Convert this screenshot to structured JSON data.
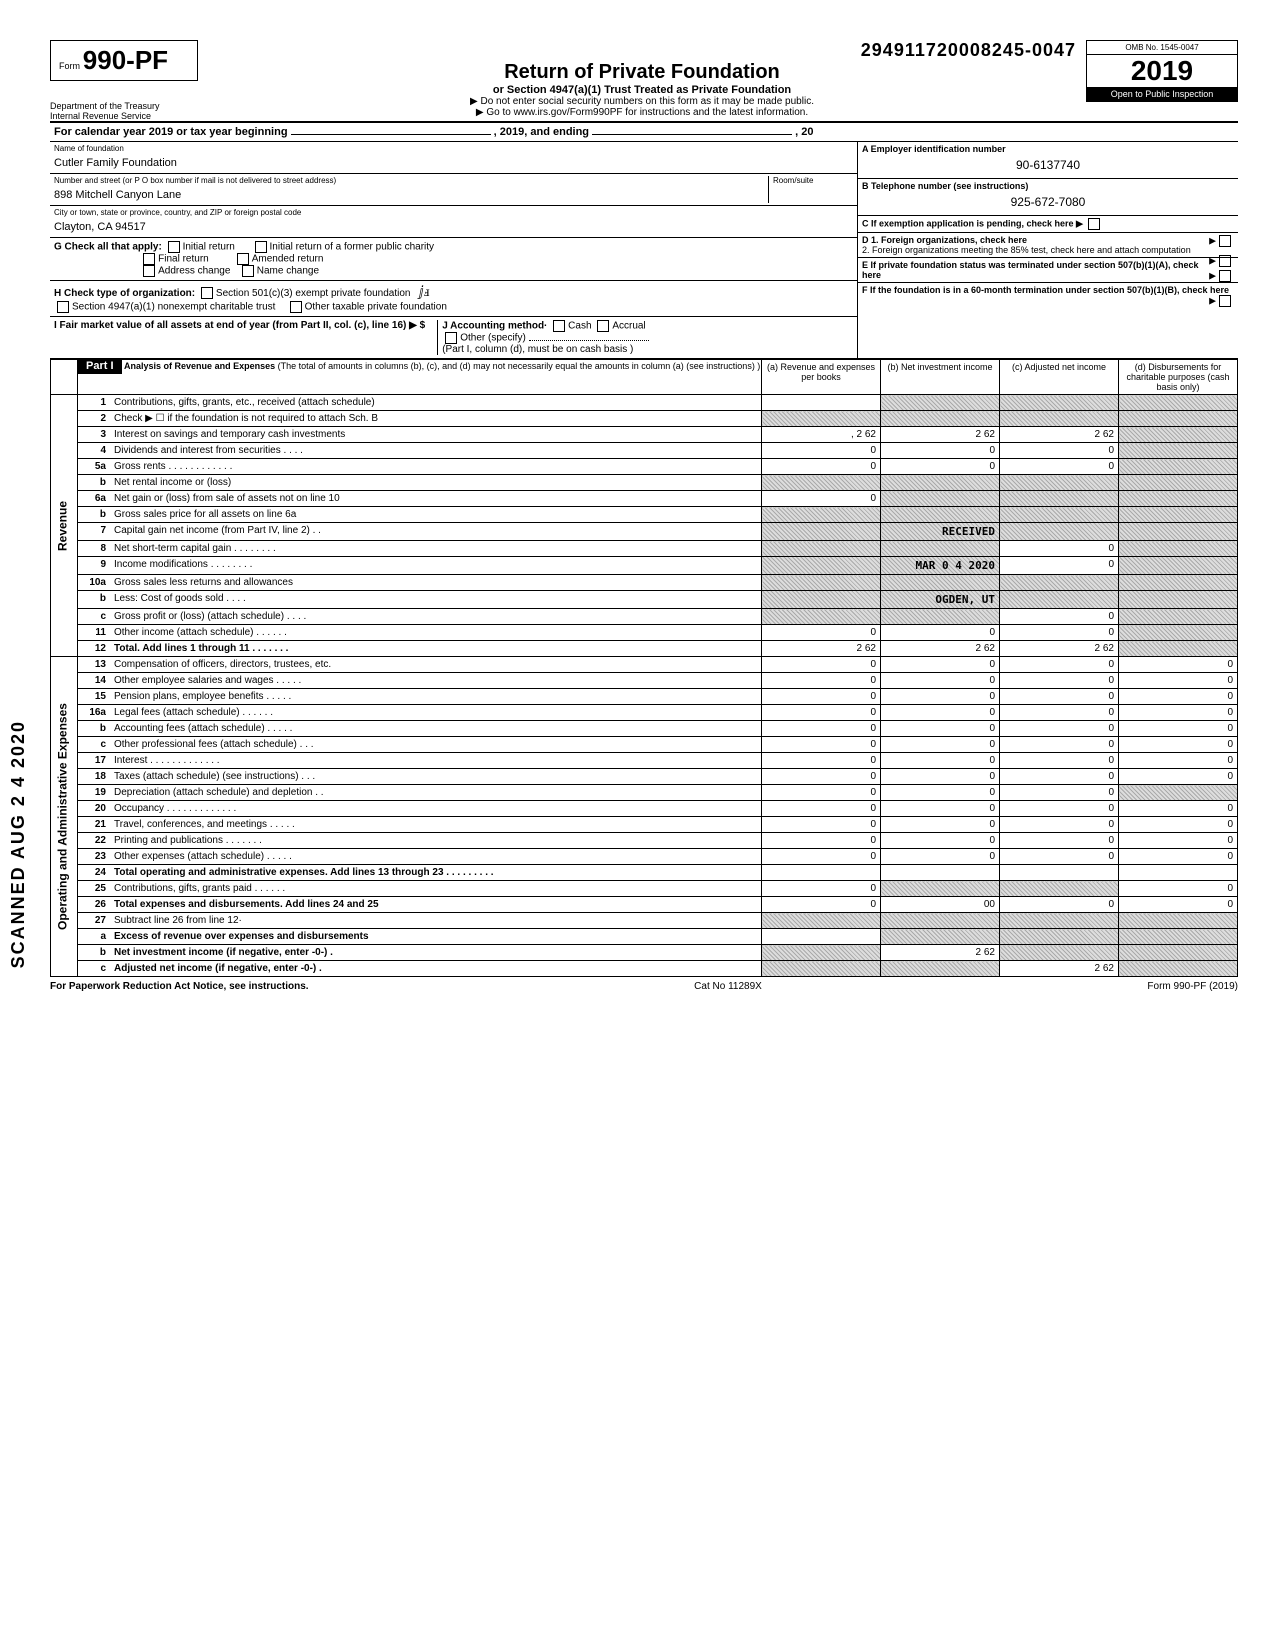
{
  "form": {
    "prefix": "Form",
    "number": "990-PF",
    "title": "Return of Private Foundation",
    "subtitle": "or Section 4947(a)(1) Trust Treated as Private Foundation",
    "warn": "▶ Do not enter social security numbers on this form as it may be made public.",
    "goto": "▶ Go to www.irs.gov/Form990PF for instructions and the latest information.",
    "dept1": "Department of the Treasury",
    "dept2": "Internal Revenue Service",
    "dln": "294911720008245-0047",
    "omb": "OMB No. 1545-0047",
    "year": "2019",
    "open": "Open to Public Inspection"
  },
  "calyear": "For calendar year 2019 or tax year beginning",
  "calyear_mid": ", 2019, and ending",
  "calyear_end": ", 20",
  "id": {
    "name_lbl": "Name of foundation",
    "name": "Cutler Family Foundation",
    "addr_lbl": "Number and street (or P O  box number if mail is not delivered to street address)",
    "addr": "898 Mitchell Canyon Lane",
    "room_lbl": "Room/suite",
    "city_lbl": "City or town, state or province, country, and ZIP or foreign postal code",
    "city": "Clayton, CA  94517",
    "a_lbl": "A  Employer identification number",
    "ein": "90-6137740",
    "b_lbl": "B  Telephone number (see instructions)",
    "phone": "925-672-7080",
    "c_lbl": "C  If exemption application is pending, check here ▶",
    "d1_lbl": "D  1. Foreign organizations, check here",
    "d2_lbl": "2. Foreign organizations meeting the 85% test, check here and attach computation",
    "e_lbl": "E  If private foundation status was terminated under section 507(b)(1)(A), check here",
    "f_lbl": "F  If the foundation is in a 60-month termination under section 507(b)(1)(B), check here"
  },
  "g": {
    "lbl": "G  Check all that apply:",
    "initial": "Initial return",
    "initial_former": "Initial return of a former public charity",
    "final": "Final return",
    "amended": "Amended return",
    "addr_change": "Address change",
    "name_change": "Name change"
  },
  "h": {
    "lbl": "H  Check type of organization:",
    "opt1": "Section 501(c)(3) exempt private foundation",
    "opt2": "Section 4947(a)(1) nonexempt charitable trust",
    "opt3": "Other taxable private foundation"
  },
  "i": {
    "lbl": "I    Fair market value of all assets at end of year  (from Part II, col. (c), line 16) ▶  $",
    "j_lbl": "J   Accounting method·",
    "cash": "Cash",
    "accrual": "Accrual",
    "other": "Other (specify)",
    "note": "(Part I, column (d), must be on cash basis )"
  },
  "part1": {
    "label": "Part I",
    "title": "Analysis of Revenue and Expenses",
    "title_note": "(The total of amounts in columns (b), (c), and (d) may not necessarily equal the amounts in column (a) (see instructions) )",
    "col_a": "(a) Revenue and expenses per books",
    "col_b": "(b) Net investment income",
    "col_c": "(c) Adjusted net income",
    "col_d": "(d) Disbursements for charitable purposes (cash basis only)"
  },
  "side_rev": "Revenue",
  "side_exp": "Operating and Administrative Expenses",
  "scanned": "SCANNED  AUG 2 4 2020",
  "stamps": {
    "received": "RECEIVED",
    "date": "MAR 0 4 2020",
    "ogden": "OGDEN, UT"
  },
  "rows": [
    {
      "n": "1",
      "d": "Contributions, gifts, grants, etc., received (attach schedule)",
      "a": "",
      "b": "shade",
      "c": "shade",
      "dd": "shade"
    },
    {
      "n": "2",
      "d": "Check ▶ ☐ if the foundation is not required to attach Sch. B",
      "a": "shade",
      "b": "shade",
      "c": "shade",
      "dd": "shade"
    },
    {
      "n": "3",
      "d": "Interest on savings and temporary cash investments",
      "a": ", 2 62",
      "b": "2 62",
      "c": "2 62",
      "dd": "shade"
    },
    {
      "n": "4",
      "d": "Dividends and interest from securities   .   .   .   .",
      "a": "0",
      "b": "0",
      "c": "0",
      "dd": "shade"
    },
    {
      "n": "5a",
      "d": "Gross rents  .   .   .   .   .   .   .   .   .   .   .   .",
      "a": "0",
      "b": "0",
      "c": "0",
      "dd": "shade"
    },
    {
      "n": "b",
      "d": "Net rental income or (loss)",
      "a": "shade",
      "b": "shade",
      "c": "shade",
      "dd": "shade"
    },
    {
      "n": "6a",
      "d": "Net gain or (loss) from sale of assets not on line 10",
      "a": "0",
      "b": "shade",
      "c": "shade",
      "dd": "shade"
    },
    {
      "n": "b",
      "d": "Gross sales price for all assets on line 6a",
      "a": "shade",
      "b": "shade",
      "c": "shade",
      "dd": "shade"
    },
    {
      "n": "7",
      "d": "Capital gain net income (from Part IV, line 2)  .   .",
      "a": "shade",
      "b": "stamp1",
      "c": "shade",
      "dd": "shade"
    },
    {
      "n": "8",
      "d": "Net short-term capital gain .   .   .   .   .   .   .   .",
      "a": "shade",
      "b": "shade",
      "c": "0",
      "dd": "shade"
    },
    {
      "n": "9",
      "d": "Income modifications       .   .   .   .   .   .   .   .",
      "a": "shade",
      "b": "stamp2",
      "c": "0",
      "dd": "shade"
    },
    {
      "n": "10a",
      "d": "Gross sales less returns and allowances",
      "a": "shade",
      "b": "shade",
      "c": "shade",
      "dd": "shade"
    },
    {
      "n": "b",
      "d": "Less: Cost of goods sold     .   .   .   .",
      "a": "shade",
      "b": "stamp3",
      "c": "shade",
      "dd": "shade"
    },
    {
      "n": "c",
      "d": "Gross profit or (loss) (attach schedule)  .   .   .   .",
      "a": "shade",
      "b": "shade",
      "c": "0",
      "dd": "shade"
    },
    {
      "n": "11",
      "d": "Other income (attach schedule)   .   .   .   .   .   .",
      "a": "0",
      "b": "0",
      "c": "0",
      "dd": "shade"
    },
    {
      "n": "12",
      "d": "Total. Add lines 1 through 11  .   .   .   .   .   .   .",
      "a": "2 62",
      "b": "2 62",
      "c": "2 62",
      "dd": "shade",
      "bold": true
    },
    {
      "n": "13",
      "d": "Compensation of officers, directors, trustees, etc.",
      "a": "0",
      "b": "0",
      "c": "0",
      "dd": "0"
    },
    {
      "n": "14",
      "d": "Other employee salaries and wages  .   .   .   .   .",
      "a": "0",
      "b": "0",
      "c": "0",
      "dd": "0"
    },
    {
      "n": "15",
      "d": "Pension plans, employee benefits    .   .   .   .   .",
      "a": "0",
      "b": "0",
      "c": "0",
      "dd": "0"
    },
    {
      "n": "16a",
      "d": "Legal fees (attach schedule)      .   .   .   .   .   .",
      "a": "0",
      "b": "0",
      "c": "0",
      "dd": "0"
    },
    {
      "n": "b",
      "d": "Accounting fees (attach schedule)   .   .   .   .   .",
      "a": "0",
      "b": "0",
      "c": "0",
      "dd": "0"
    },
    {
      "n": "c",
      "d": "Other professional fees (attach schedule)  .   .   .",
      "a": "0",
      "b": "0",
      "c": "0",
      "dd": "0"
    },
    {
      "n": "17",
      "d": "Interest    .   .   .   .   .   .   .   .   .   .   .   .   .",
      "a": "0",
      "b": "0",
      "c": "0",
      "dd": "0"
    },
    {
      "n": "18",
      "d": "Taxes (attach schedule) (see instructions)  .   .   .",
      "a": "0",
      "b": "0",
      "c": "0",
      "dd": "0"
    },
    {
      "n": "19",
      "d": "Depreciation (attach schedule) and depletion .   .",
      "a": "0",
      "b": "0",
      "c": "0",
      "dd": "shade"
    },
    {
      "n": "20",
      "d": "Occupancy .   .   .   .   .   .   .   .   .   .   .   .   .",
      "a": "0",
      "b": "0",
      "c": "0",
      "dd": "0"
    },
    {
      "n": "21",
      "d": "Travel, conferences, and meetings   .   .   .   .   .",
      "a": "0",
      "b": "0",
      "c": "0",
      "dd": "0"
    },
    {
      "n": "22",
      "d": "Printing and publications     .   .   .   .   .   .   .",
      "a": "0",
      "b": "0",
      "c": "0",
      "dd": "0"
    },
    {
      "n": "23",
      "d": "Other expenses (attach schedule)   .   .   .   .   .",
      "a": "0",
      "b": "0",
      "c": "0",
      "dd": "0"
    },
    {
      "n": "24",
      "d": "Total operating and administrative expenses. Add lines 13 through 23 .   .   .   .   .   .   .   .   .",
      "a": "",
      "b": "",
      "c": "",
      "dd": "",
      "bold": true
    },
    {
      "n": "25",
      "d": "Contributions, gifts, grants paid   .   .   .   .   .   .",
      "a": "0",
      "b": "shade",
      "c": "shade",
      "dd": "0"
    },
    {
      "n": "26",
      "d": "Total expenses and disbursements. Add lines 24 and 25",
      "a": "0",
      "b": "00",
      "c": "0",
      "dd": "0",
      "bold": true
    },
    {
      "n": "27",
      "d": "Subtract line 26 from line 12·",
      "a": "shade",
      "b": "shade",
      "c": "shade",
      "dd": "shade"
    },
    {
      "n": "a",
      "d": "Excess of revenue over expenses and disbursements",
      "a": "",
      "b": "shade",
      "c": "shade",
      "dd": "shade",
      "bold": true
    },
    {
      "n": "b",
      "d": "Net investment income (if negative, enter -0-)  .",
      "a": "shade",
      "b": "2 62",
      "c": "shade",
      "dd": "shade",
      "bold": true
    },
    {
      "n": "c",
      "d": "Adjusted net income (if negative, enter -0-)   .",
      "a": "shade",
      "b": "shade",
      "c": "2 62",
      "dd": "shade",
      "bold": true
    }
  ],
  "footer": {
    "left": "For Paperwork Reduction Act Notice, see instructions.",
    "mid": "Cat  No  11289X",
    "right": "Form 990-PF (2019)"
  }
}
